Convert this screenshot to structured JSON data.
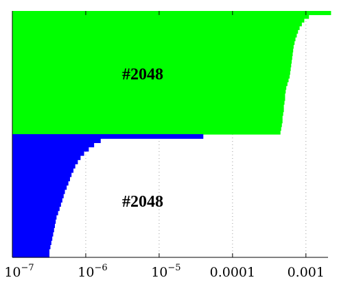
{
  "chart_data": {
    "type": "area",
    "xscale": "log",
    "xlim": [
      1e-07,
      0.002
    ],
    "grid": "x-dotted",
    "xticks": [
      {
        "value": 1e-07,
        "base": "10",
        "exp": "−7"
      },
      {
        "value": 1e-06,
        "base": "10",
        "exp": "−6"
      },
      {
        "value": 1e-05,
        "base": "10",
        "exp": "−5"
      },
      {
        "value": 0.0001,
        "label": "0.0001"
      },
      {
        "value": 0.001,
        "label": "0.001"
      }
    ],
    "series": [
      {
        "color": "#00ff00",
        "annotation": "#2048",
        "sorted_values": [
          0.0022,
          0.0011,
          0.00095,
          0.00088,
          0.00082,
          0.00078,
          0.00075,
          0.00072,
          0.0007,
          0.00068,
          0.00067,
          0.00066,
          0.00065,
          0.00064,
          0.00063,
          0.00062,
          0.00061,
          0.0006,
          0.00058,
          0.00056,
          0.00054,
          0.00053,
          0.00052,
          0.00052,
          0.00051,
          0.0005,
          0.0005,
          0.00049,
          0.00048,
          0.00048,
          0.00047,
          0.00046,
          0.00045
        ]
      },
      {
        "color": "#0000ff",
        "annotation": "#2048",
        "sorted_values": [
          4e-05,
          1.6e-06,
          1.3e-06,
          1.1e-06,
          9.5e-07,
          8.5e-07,
          7.8e-07,
          7.2e-07,
          6.8e-07,
          6.4e-07,
          6.1e-07,
          5.8e-07,
          5.5e-07,
          5.2e-07,
          5e-07,
          4.8e-07,
          4.6e-07,
          4.4e-07,
          4.2e-07,
          4e-07,
          3.9e-07,
          3.8e-07,
          3.7e-07,
          3.6e-07,
          3.5e-07,
          3.4e-07,
          3.3e-07,
          3.2e-07,
          3.2e-07
        ]
      }
    ]
  }
}
